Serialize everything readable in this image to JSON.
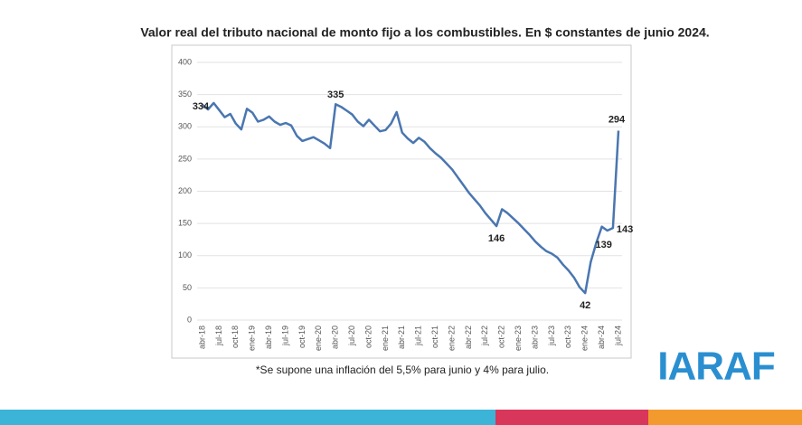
{
  "chart_data": {
    "type": "line",
    "title": "Valor real del tributo nacional de monto fijo a los combustibles. En $ constantes de junio 2024.",
    "footnote": "*Se supone una inflación del 5,5% para junio y 4% para julio.",
    "logo": "IARAF",
    "categories": [
      "abr-18",
      null,
      null,
      "jul-18",
      null,
      null,
      "oct-18",
      null,
      null,
      "ene-19",
      null,
      null,
      "abr-19",
      null,
      null,
      "jul-19",
      null,
      null,
      "oct-19",
      null,
      null,
      "ene-20",
      null,
      null,
      "abr-20",
      null,
      null,
      "jul-20",
      null,
      null,
      "oct-20",
      null,
      null,
      "ene-21",
      null,
      null,
      "abr-21",
      null,
      null,
      "jul-21",
      null,
      null,
      "oct-21",
      null,
      null,
      "ene-22",
      null,
      null,
      "abr-22",
      null,
      null,
      "jul-22",
      null,
      null,
      "oct-22",
      null,
      null,
      "ene-23",
      null,
      null,
      "abr-23",
      null,
      null,
      "jul-23",
      null,
      null,
      "oct-23",
      null,
      null,
      "ene-24",
      null,
      null,
      "abr-24",
      null,
      null,
      "jul-24"
    ],
    "series": [
      {
        "name": "Valor real",
        "color": "#4a76b0",
        "values": [
          334,
          327,
          337,
          326,
          315,
          320,
          305,
          296,
          328,
          322,
          308,
          311,
          316,
          308,
          303,
          306,
          302,
          286,
          278,
          281,
          284,
          279,
          274,
          267,
          335,
          331,
          325,
          319,
          308,
          301,
          311,
          302,
          293,
          295,
          305,
          323,
          291,
          282,
          275,
          283,
          277,
          267,
          259,
          252,
          243,
          234,
          222,
          210,
          198,
          188,
          178,
          166,
          156,
          146,
          172,
          166,
          158,
          150,
          141,
          132,
          122,
          114,
          107,
          103,
          97,
          86,
          77,
          66,
          51,
          42,
          90,
          120,
          145,
          139,
          143,
          294
        ],
        "value_labels": [
          "334",
          null,
          null,
          null,
          null,
          null,
          null,
          null,
          null,
          null,
          null,
          null,
          null,
          null,
          null,
          null,
          null,
          null,
          null,
          null,
          null,
          null,
          null,
          null,
          "335",
          null,
          null,
          null,
          null,
          null,
          null,
          null,
          null,
          null,
          null,
          null,
          null,
          null,
          null,
          null,
          null,
          null,
          null,
          null,
          null,
          null,
          null,
          null,
          null,
          null,
          null,
          null,
          null,
          "146",
          null,
          null,
          null,
          null,
          null,
          null,
          null,
          null,
          null,
          null,
          null,
          null,
          null,
          null,
          null,
          "42",
          null,
          null,
          null,
          "139",
          "143",
          "294"
        ]
      }
    ],
    "ylim": [
      0,
      400
    ],
    "yticks": [
      0,
      50,
      100,
      150,
      200,
      250,
      300,
      350,
      400
    ],
    "grid": true
  }
}
